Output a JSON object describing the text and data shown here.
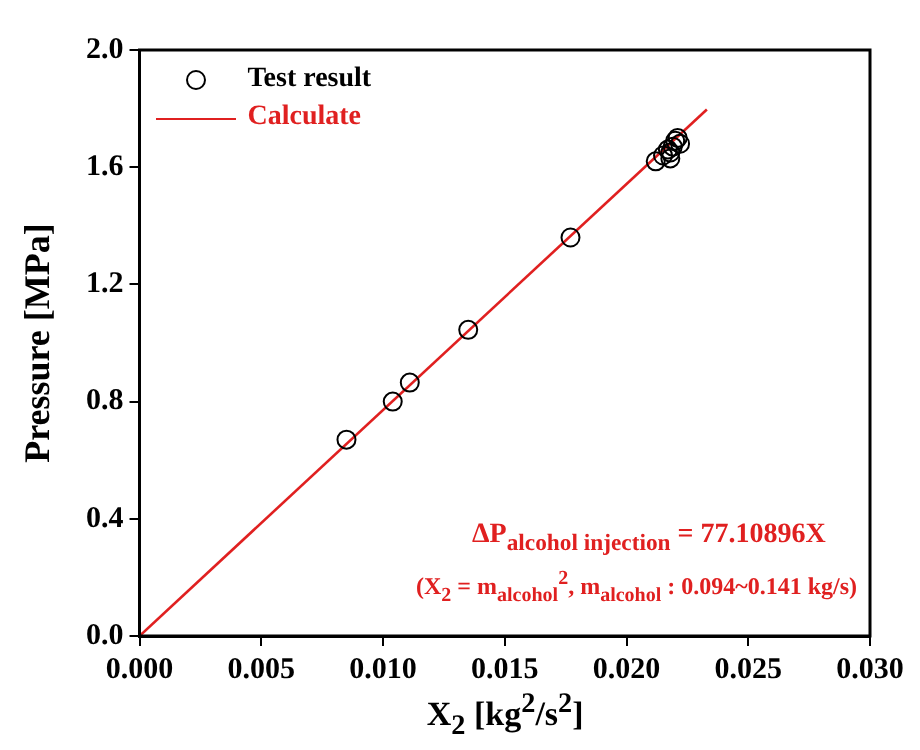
{
  "chart_data": {
    "type": "scatter",
    "xlabel": "X$_{2}$ [kg$^{2}$/s$^{2}$]",
    "ylabel": "Pressure [MPa]",
    "xlim": [
      0,
      0.03
    ],
    "xticks": [
      {
        "value": 0,
        "label": "0.000"
      },
      0.005,
      {
        "value": 0.01,
        "label": "0.010"
      },
      0.015,
      {
        "value": 0.02,
        "label": "0.020"
      },
      0.025,
      {
        "value": 0.03,
        "label": "0.030"
      }
    ],
    "ylim": [
      0,
      2
    ],
    "yticks": [
      {
        "value": 0,
        "label": "0.0"
      },
      0.4,
      0.8,
      1.2,
      1.6,
      {
        "value": 2,
        "label": "2.0"
      }
    ],
    "grid": false,
    "legend": "top left",
    "series": [
      {
        "name": "Test result",
        "marker": "circle",
        "color": "#000000",
        "x": [
          0.0085,
          0.0104,
          0.0111,
          0.0135,
          0.0177,
          0.0212,
          0.0215,
          0.0217,
          0.0218,
          0.0218,
          0.0219,
          0.022,
          0.0221,
          0.0222
        ],
        "values": [
          0.67,
          0.8,
          0.865,
          1.045,
          1.36,
          1.62,
          1.64,
          1.66,
          1.63,
          1.65,
          1.67,
          1.69,
          1.7,
          1.68
        ]
      },
      {
        "name": "Calculate",
        "type": "line",
        "marker": "none",
        "color": "#e02020",
        "x": [
          0,
          0.0233
        ],
        "values": [
          0,
          1.797
        ]
      }
    ],
    "annotations": [
      "ΔP$_{alcohol injection}$ = 77.10896X",
      "(X$_{2}$ = m$_{alcohol}$$^{2}$, m$_{alcohol}$ : 0.094~0.141 kg/s)"
    ]
  }
}
